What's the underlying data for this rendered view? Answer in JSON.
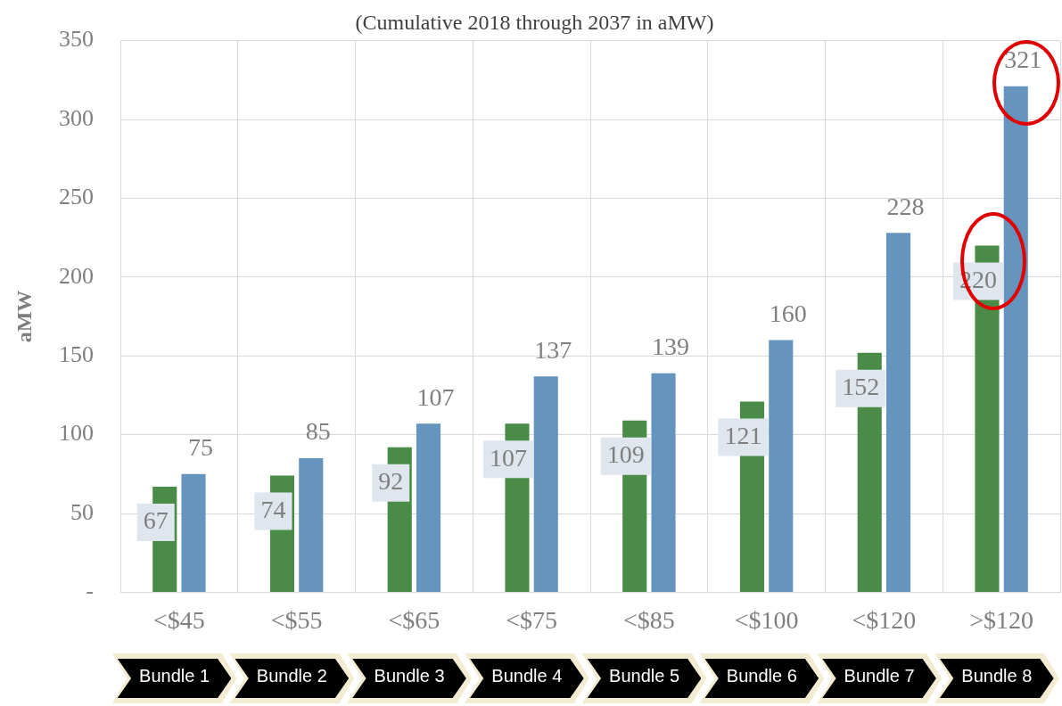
{
  "chart_data": {
    "type": "bar",
    "title": "(Cumulative 2018 through 2037 in aMW)",
    "ylabel": "aMW",
    "categories": [
      "<$45",
      "<$55",
      "<$65",
      "<$75",
      "<$85",
      "<$100",
      "<$120",
      ">$120"
    ],
    "series": [
      {
        "color": "#4a8b48",
        "values": [
          67,
          74,
          92,
          107,
          109,
          121,
          152,
          220
        ]
      },
      {
        "color": "#6595bf",
        "values": [
          75,
          85,
          107,
          137,
          139,
          160,
          228,
          321
        ]
      }
    ],
    "ylim": [
      0,
      350
    ],
    "yticks": [
      {
        "value": 0,
        "label": "-"
      },
      50,
      100,
      150,
      200,
      250,
      300,
      350
    ],
    "grid": true,
    "data_labels": true,
    "annotations": [
      "Bundle 1",
      "Bundle 2",
      "Bundle 3",
      "Bundle 4",
      "Bundle 5",
      "Bundle 6",
      "Bundle 7",
      "Bundle 8"
    ]
  }
}
